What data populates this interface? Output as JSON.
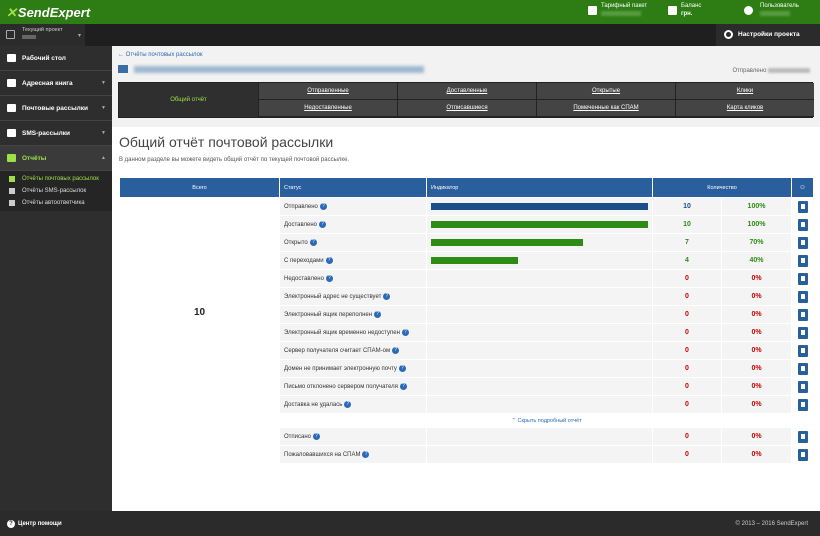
{
  "topbar": {
    "logo": "SendExpert",
    "tariff_label": "Тарифный пакет",
    "balance_label": "Баланс",
    "balance_value": "грн.",
    "user_label": "Пользователь"
  },
  "project": {
    "label": "Текущий проект"
  },
  "settings_label": "Настройки проекта",
  "sidebar": {
    "items": [
      {
        "label": "Рабочий стол"
      },
      {
        "label": "Адресная книга"
      },
      {
        "label": "Почтовые рассылки"
      },
      {
        "label": "SMS-рассылки"
      },
      {
        "label": "Отчёты"
      }
    ],
    "sub_items": [
      {
        "label": "Отчёты почтовых рассылок"
      },
      {
        "label": "Отчёты SMS-рассылок"
      },
      {
        "label": "Отчёты автоответчика"
      }
    ]
  },
  "breadcrumb": "← Отчёты почтовых рассылок",
  "sent_label": "Отправлено",
  "tabs": {
    "selected": "Общий отчёт",
    "row1": [
      "Отправленные",
      "Доставленные",
      "Открытые",
      "Клики"
    ],
    "row2": [
      "Недоставленные",
      "Отписавшиеся",
      "Помеченные как СПАМ",
      "Карта кликов"
    ]
  },
  "page_title": "Общий отчёт почтовой рассылки",
  "description": "В данном разделе вы можете видеть общий отчёт по текущей почтовой рассылке.",
  "table": {
    "headers": {
      "total": "Всего",
      "status": "Статус",
      "indicator": "Индикатор",
      "count": "Количество"
    },
    "total": "10",
    "rows": [
      {
        "status": "Отправлено",
        "count": "10",
        "pct": "100%",
        "fill": 100,
        "color": "#1a4f8b"
      },
      {
        "status": "Доставлено",
        "count": "10",
        "pct": "100%",
        "fill": 100,
        "color": "#2e8b14"
      },
      {
        "status": "Открыто",
        "count": "7",
        "pct": "70%",
        "fill": 70,
        "color": "#2e8b14"
      },
      {
        "status": "С переходами",
        "count": "4",
        "pct": "40%",
        "fill": 40,
        "color": "#2e8b14"
      },
      {
        "status": "Недоставлено",
        "count": "0",
        "pct": "0%",
        "fill": 0,
        "color": "#c00"
      },
      {
        "status": "Электронный адрес не существует",
        "count": "0",
        "pct": "0%",
        "fill": 0,
        "color": "#c00"
      },
      {
        "status": "Электронный ящик переполнен",
        "count": "0",
        "pct": "0%",
        "fill": 0,
        "color": "#c00"
      },
      {
        "status": "Электронный ящик временно недоступен",
        "count": "0",
        "pct": "0%",
        "fill": 0,
        "color": "#c00"
      },
      {
        "status": "Сервер получателя считает СПАМ-ом",
        "count": "0",
        "pct": "0%",
        "fill": 0,
        "color": "#c00"
      },
      {
        "status": "Домен не принимает электронную почту",
        "count": "0",
        "pct": "0%",
        "fill": 0,
        "color": "#c00"
      },
      {
        "status": "Письмо отклонено сервером получателя",
        "count": "0",
        "pct": "0%",
        "fill": 0,
        "color": "#c00"
      },
      {
        "status": "Доставка не удалась",
        "count": "0",
        "pct": "0%",
        "fill": 0,
        "color": "#c00"
      }
    ],
    "detail_link": "⌃ Скрыть подробный отчёт",
    "extra_rows": [
      {
        "status": "Отписано",
        "count": "0",
        "pct": "0%"
      },
      {
        "status": "Пожаловавшихся на СПАМ",
        "count": "0",
        "pct": "0%"
      }
    ]
  },
  "footer": {
    "help": "Центр помощи",
    "copyright": "© 2013 – 2016 SendExpert"
  }
}
